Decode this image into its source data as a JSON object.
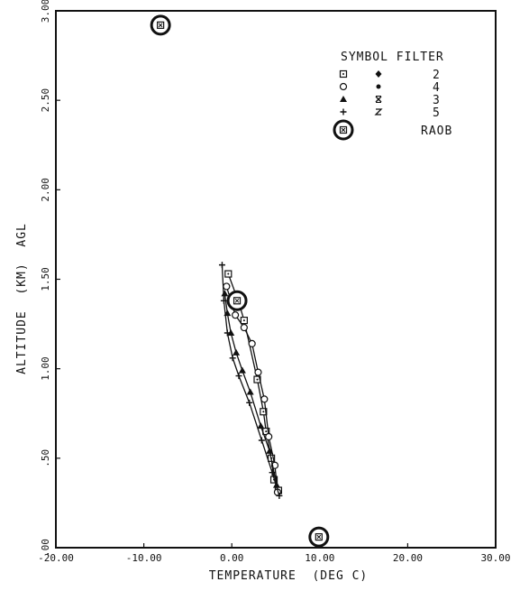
{
  "chart_data": {
    "type": "line",
    "title": "",
    "xlabel": "TEMPERATURE  (DEG C)",
    "ylabel": "ALTITUDE  (KM)  AGL",
    "xlim": [
      -20,
      30
    ],
    "ylim": [
      0,
      3
    ],
    "x_ticks": [
      "-20.00",
      "-10.00",
      "0.00",
      "10.00",
      "20.00",
      "30.00"
    ],
    "y_ticks": [
      ".00",
      ".50",
      "1.00",
      "1.50",
      "2.00",
      "2.50",
      "3.00"
    ],
    "legend": {
      "title": "SYMBOL  FILTER",
      "position": "top-right",
      "entries": [
        {
          "marker1": "open-square",
          "marker2": "filled-diamond",
          "filter": "2"
        },
        {
          "marker1": "open-circle",
          "marker2": "filled-dot",
          "filter": "4"
        },
        {
          "marker1": "filled-triangle",
          "marker2": "x-mark",
          "filter": "3"
        },
        {
          "marker1": "plus",
          "marker2": "z-mark",
          "filter": "5"
        },
        {
          "marker1": "raob-circle",
          "marker2": "",
          "filter": "RAOB"
        }
      ]
    },
    "series": [
      {
        "filter": "2",
        "marker": "open-square",
        "points": [
          [
            5.3,
            0.32
          ],
          [
            4.8,
            0.38
          ],
          [
            4.5,
            0.5
          ],
          [
            3.9,
            0.65
          ],
          [
            3.6,
            0.76
          ],
          [
            2.9,
            0.94
          ],
          [
            1.4,
            1.27
          ],
          [
            0.8,
            1.37
          ],
          [
            -0.4,
            1.53
          ]
        ]
      },
      {
        "filter": "4",
        "marker": "open-circle",
        "points": [
          [
            5.2,
            0.31
          ],
          [
            4.9,
            0.46
          ],
          [
            4.2,
            0.62
          ],
          [
            3.7,
            0.83
          ],
          [
            3.0,
            0.98
          ],
          [
            2.3,
            1.14
          ],
          [
            1.4,
            1.23
          ],
          [
            0.4,
            1.3
          ],
          [
            -0.6,
            1.46
          ]
        ]
      },
      {
        "filter": "3",
        "marker": "filled-triangle",
        "points": [
          [
            5.1,
            0.35
          ],
          [
            4.3,
            0.54
          ],
          [
            3.3,
            0.68
          ],
          [
            2.1,
            0.87
          ],
          [
            1.2,
            0.99
          ],
          [
            0.5,
            1.09
          ],
          [
            -0.1,
            1.2
          ],
          [
            -0.5,
            1.31
          ],
          [
            -0.8,
            1.42
          ]
        ]
      },
      {
        "filter": "5",
        "marker": "plus",
        "points": [
          [
            5.4,
            0.29
          ],
          [
            4.6,
            0.42
          ],
          [
            3.4,
            0.6
          ],
          [
            2.0,
            0.81
          ],
          [
            0.8,
            0.96
          ],
          [
            0.1,
            1.06
          ],
          [
            -0.5,
            1.2
          ],
          [
            -0.9,
            1.38
          ],
          [
            -1.1,
            1.58
          ]
        ]
      },
      {
        "filter": "RAOB",
        "marker": "raob-circle",
        "points": [
          [
            -8.1,
            2.92
          ],
          [
            0.6,
            1.38
          ],
          [
            9.9,
            0.06
          ]
        ]
      }
    ]
  }
}
